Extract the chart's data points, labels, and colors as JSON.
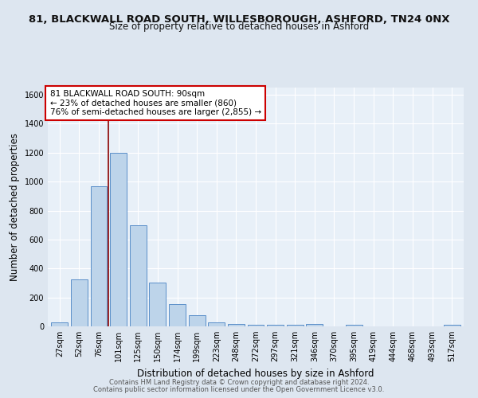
{
  "title_line1": "81, BLACKWALL ROAD SOUTH, WILLESBOROUGH, ASHFORD, TN24 0NX",
  "title_line2": "Size of property relative to detached houses in Ashford",
  "xlabel": "Distribution of detached houses by size in Ashford",
  "ylabel": "Number of detached properties",
  "categories": [
    "27sqm",
    "52sqm",
    "76sqm",
    "101sqm",
    "125sqm",
    "150sqm",
    "174sqm",
    "199sqm",
    "223sqm",
    "248sqm",
    "272sqm",
    "297sqm",
    "321sqm",
    "346sqm",
    "370sqm",
    "395sqm",
    "419sqm",
    "444sqm",
    "468sqm",
    "493sqm",
    "517sqm"
  ],
  "values": [
    25,
    325,
    970,
    1200,
    700,
    305,
    155,
    75,
    30,
    18,
    10,
    10,
    10,
    15,
    0,
    10,
    0,
    0,
    0,
    0,
    10
  ],
  "bar_color": "#bdd4ea",
  "bar_edge_color": "#5b8fc9",
  "red_line_x": 2.5,
  "annotation_title": "81 BLACKWALL ROAD SOUTH: 90sqm",
  "annotation_line1": "← 23% of detached houses are smaller (860)",
  "annotation_line2": "76% of semi-detached houses are larger (2,855) →",
  "annotation_box_color": "#ffffff",
  "annotation_box_edge_color": "#cc0000",
  "ylim": [
    0,
    1650
  ],
  "yticks": [
    0,
    200,
    400,
    600,
    800,
    1000,
    1200,
    1400,
    1600
  ],
  "background_color": "#dde6f0",
  "plot_bg_color": "#e8f0f8",
  "grid_color": "#ffffff",
  "footer_line1": "Contains HM Land Registry data © Crown copyright and database right 2024.",
  "footer_line2": "Contains public sector information licensed under the Open Government Licence v3.0.",
  "title_fontsize": 9.5,
  "subtitle_fontsize": 8.5,
  "axis_label_fontsize": 8.5,
  "tick_fontsize": 7,
  "footer_fontsize": 6,
  "annotation_fontsize": 7.5
}
